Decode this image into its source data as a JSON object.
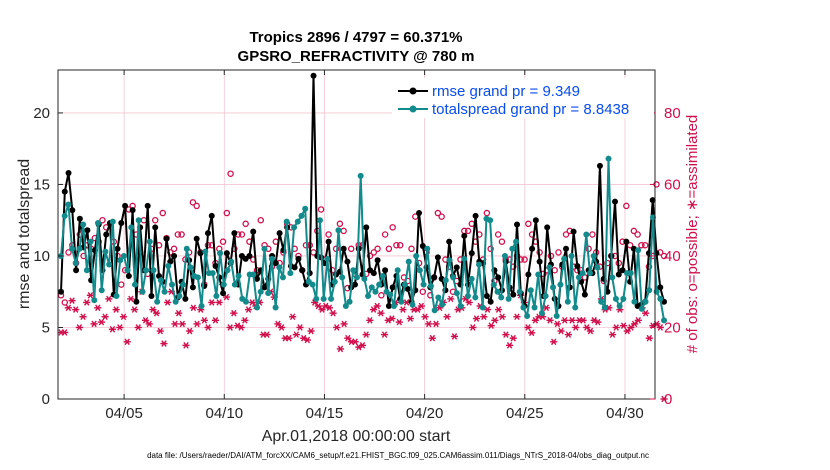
{
  "chart_data": {
    "type": "line",
    "title_line1": "Tropics 2896 / 4797 = 60.371%",
    "title_line2": "GPSRO_REFRACTIVITY @ 780 m",
    "xlabel": "Apr.01,2018 00:00:00 start",
    "ylabel_left": "rmse and totalspread",
    "ylabel_right": "# of obs: o=possible; ∗=assimilated",
    "footer": "data file: /Users/raeder/DAI/ATM_forcXX/CAM6_setup/f.e21.FHIST_BGC.f09_025.CAM6assim.011/Diags_NTrS_2018-04/obs_diag_output.nc",
    "x_range_days": [
      0.7,
      30.5
    ],
    "ylim_left": [
      0,
      23
    ],
    "ylim_right": [
      0,
      92
    ],
    "x_tick_days": [
      4,
      9,
      14,
      19,
      24,
      29
    ],
    "x_tick_labels": [
      "04/05",
      "04/10",
      "04/15",
      "04/20",
      "04/25",
      "04/30"
    ],
    "y_ticks_left": [
      0,
      5,
      10,
      15,
      20
    ],
    "y_ticks_right": [
      0,
      20,
      40,
      60,
      80
    ],
    "colors": {
      "rmse": "#000000",
      "totalspread": "#138a8c",
      "obs": "#d0104c",
      "legend_text": "#0a4cf0",
      "grid": "#f2c6d2"
    },
    "series": [
      {
        "name": "rmse grand pr = 9.349",
        "values": [
          7.5,
          14.5,
          15.8,
          13.2,
          9.0,
          12.6,
          10.6,
          11.8,
          8.3,
          10.4,
          12.2,
          9.0,
          11.5,
          12.3,
          7.3,
          10.5,
          12.3,
          13.5,
          8.6,
          13.2,
          6.8,
          12.0,
          9.0,
          13.5,
          7.2,
          12.0,
          8.6,
          8.2,
          11.2,
          9.6,
          10.0,
          7.1,
          8.2,
          7.0,
          9.7,
          7.8,
          11.2,
          10.2,
          7.9,
          11.6,
          12.8,
          9.3,
          8.5,
          7.4,
          10.2,
          9.5,
          11.6,
          8.0,
          10.0,
          9.8,
          10.0,
          11.7,
          8.4,
          9.0,
          7.8,
          8.4,
          10.0,
          9.5,
          11.6,
          10.4,
          12.0,
          9.3,
          9.2,
          9.8,
          9.0,
          8.0,
          8.8,
          22.6,
          10.0,
          9.9,
          9.5,
          11.0,
          8.0,
          8.7,
          8.9,
          10.5,
          9.6,
          7.8,
          8.0,
          10.5,
          8.7,
          12.0,
          9.0,
          8.8,
          9.7,
          8.0,
          9.0,
          6.5,
          7.8,
          8.6,
          7.0,
          8.0,
          7.7,
          6.8,
          7.6,
          13.0,
          10.7,
          9.2,
          7.8,
          8.5,
          9.9,
          8.4,
          7.6,
          11.0,
          8.6,
          9.2,
          8.0,
          11.4,
          8.0,
          10.2,
          12.8,
          9.6,
          9.5,
          7.2,
          6.8,
          9.0,
          8.5,
          7.6,
          9.6,
          7.8,
          7.3,
          12.2,
          7.4,
          6.5,
          8.7,
          10.5,
          12.5,
          9.6,
          7.2,
          12.0,
          9.4,
          7.0,
          6.5,
          9.4,
          10.5,
          7.8,
          11.7,
          9.3,
          8.2,
          7.3,
          9.0,
          8.8,
          9.6,
          16.3,
          8.4,
          7.5,
          10.0,
          13.8,
          8.7,
          9.0,
          11.0,
          8.2,
          10.5,
          6.5,
          6.6,
          6.8,
          10.2,
          13.9,
          10.2,
          7.8,
          6.8
        ]
      },
      {
        "name": "totalspread grand pr = 8.8438",
        "values": [
          10.0,
          12.8,
          13.6,
          10.5,
          9.5,
          10.5,
          12.2,
          9.0,
          11.0,
          6.9,
          12.3,
          7.6,
          10.3,
          9.4,
          12.4,
          7.2,
          9.7,
          10.0,
          9.0,
          12.0,
          8.0,
          12.5,
          7.5,
          9.0,
          11.0,
          9.0,
          6.8,
          8.3,
          7.5,
          9.3,
          8.0,
          6.8,
          7.2,
          8.0,
          10.5,
          9.2,
          8.6,
          8.5,
          6.5,
          10.3,
          8.8,
          8.8,
          7.2,
          10.2,
          8.0,
          9.0,
          9.6,
          8.0,
          8.6,
          7.0,
          6.8,
          8.7,
          8.7,
          6.4,
          7.5,
          10.5,
          7.4,
          9.8,
          6.4,
          9.2,
          8.5,
          12.4,
          8.8,
          12.0,
          12.4,
          12.8,
          13.3,
          8.2,
          8.0,
          7.0,
          12.5,
          7.0,
          9.8,
          7.0,
          8.2,
          11.8,
          8.5,
          6.5,
          6.8,
          9.0,
          8.5,
          15.6,
          8.4,
          7.2,
          7.8,
          7.5,
          8.0,
          8.6,
          7.5,
          7.3,
          6.5,
          9.0,
          6.8,
          8.0,
          9.6,
          6.6,
          10.0,
          9.0,
          8.0,
          10.5,
          7.9,
          6.2,
          7.1,
          6.6,
          8.3,
          9.7,
          8.5,
          7.4,
          6.5,
          9.8,
          7.2,
          8.4,
          7.1,
          9.4,
          6.4,
          12.6,
          12.5,
          8.0,
          7.5,
          7.1,
          10.0,
          7.0,
          10.5,
          11.0,
          7.5,
          6.4,
          5.8,
          7.6,
          6.4,
          8.7,
          6.0,
          7.2,
          9.2,
          7.8,
          5.8,
          8.0,
          9.8,
          6.8,
          10.0,
          6.4,
          8.5,
          8.8,
          11.5,
          8.8,
          10.0,
          9.2,
          6.8,
          6.4,
          16.8,
          8.5,
          7.0,
          6.5,
          7.0,
          8.8,
          8.8,
          6.8,
          10.4,
          6.3,
          6.8,
          7.6,
          12.7,
          7.5,
          7.0,
          5.5
        ]
      },
      {
        "name": "possible obs (o)",
        "values": [
          29,
          27,
          41,
          43,
          38,
          46,
          40,
          43,
          42,
          45,
          44,
          50,
          48,
          49,
          44,
          40,
          32,
          36,
          53,
          54,
          46,
          41,
          50,
          35,
          42,
          50,
          43,
          52,
          45,
          41,
          42,
          46,
          46,
          39,
          41,
          55,
          54,
          41,
          32,
          43,
          43,
          38,
          42,
          44,
          52,
          63,
          42,
          46,
          46,
          49,
          44,
          39,
          36,
          50,
          43,
          42,
          37,
          44,
          38,
          41,
          49,
          48,
          42,
          40,
          36,
          43,
          43,
          41,
          47,
          53,
          39,
          46,
          36,
          42,
          49,
          47,
          31,
          42,
          35,
          43,
          43,
          35,
          40,
          41,
          42,
          29,
          46,
          42,
          48,
          43,
          43,
          34,
          33,
          42,
          51,
          38,
          30,
          41,
          29,
          34,
          52,
          51,
          39,
          37,
          30,
          33,
          39,
          47,
          47,
          49,
          44,
          46,
          39,
          52,
          42,
          33,
          46,
          44,
          39,
          39,
          37,
          40,
          39,
          39,
          49,
          46,
          44,
          41,
          35,
          36,
          40,
          36,
          41,
          37,
          46,
          47,
          37,
          36,
          36,
          34,
          42,
          46,
          41,
          37,
          33,
          38,
          40,
          40,
          38,
          44,
          54,
          43,
          47,
          46,
          43,
          43,
          37,
          40,
          60,
          41,
          40
        ]
      },
      {
        "name": "assimilated obs (*)",
        "values": [
          18.6,
          18.6,
          25.5,
          27.5,
          25,
          20,
          23,
          27,
          29,
          21,
          25.5,
          21.5,
          23,
          28,
          19.5,
          25,
          20,
          23,
          16,
          28,
          25,
          20,
          30,
          22,
          21,
          25,
          24,
          19,
          15.5,
          27,
          30,
          21,
          24,
          21,
          15,
          19,
          25.5,
          21,
          25,
          22,
          20,
          27,
          22,
          27,
          32,
          28.5,
          20,
          24,
          20.5,
          20,
          22,
          25,
          27,
          26,
          27,
          18,
          18,
          30,
          28.5,
          21,
          20,
          17,
          17,
          23,
          18,
          20,
          17,
          16.5,
          19,
          27,
          26,
          25,
          26,
          25.5,
          24,
          20,
          14,
          21,
          17,
          16,
          16,
          14.5,
          15,
          18,
          22,
          25,
          26,
          24,
          18,
          22,
          22.5,
          27,
          21.5,
          25,
          27,
          22.5,
          25,
          25,
          26,
          23,
          21,
          17,
          21,
          25.5,
          27,
          23,
          28,
          17.5,
          25,
          25.5,
          28,
          27,
          20,
          22.5,
          26,
          23,
          25,
          20.5,
          22,
          25,
          23,
          18,
          15,
          17,
          23,
          29,
          27,
          20,
          18.5,
          22,
          23,
          23,
          25.5,
          22,
          16,
          21,
          19,
          22,
          18,
          22,
          20,
          22,
          22,
          20,
          19,
          22,
          21.5,
          28,
          25,
          25.5,
          18,
          20,
          25,
          20.5,
          19,
          20,
          21,
          22,
          25.5,
          24,
          17,
          20.5,
          21,
          20,
          0
        ]
      }
    ]
  }
}
